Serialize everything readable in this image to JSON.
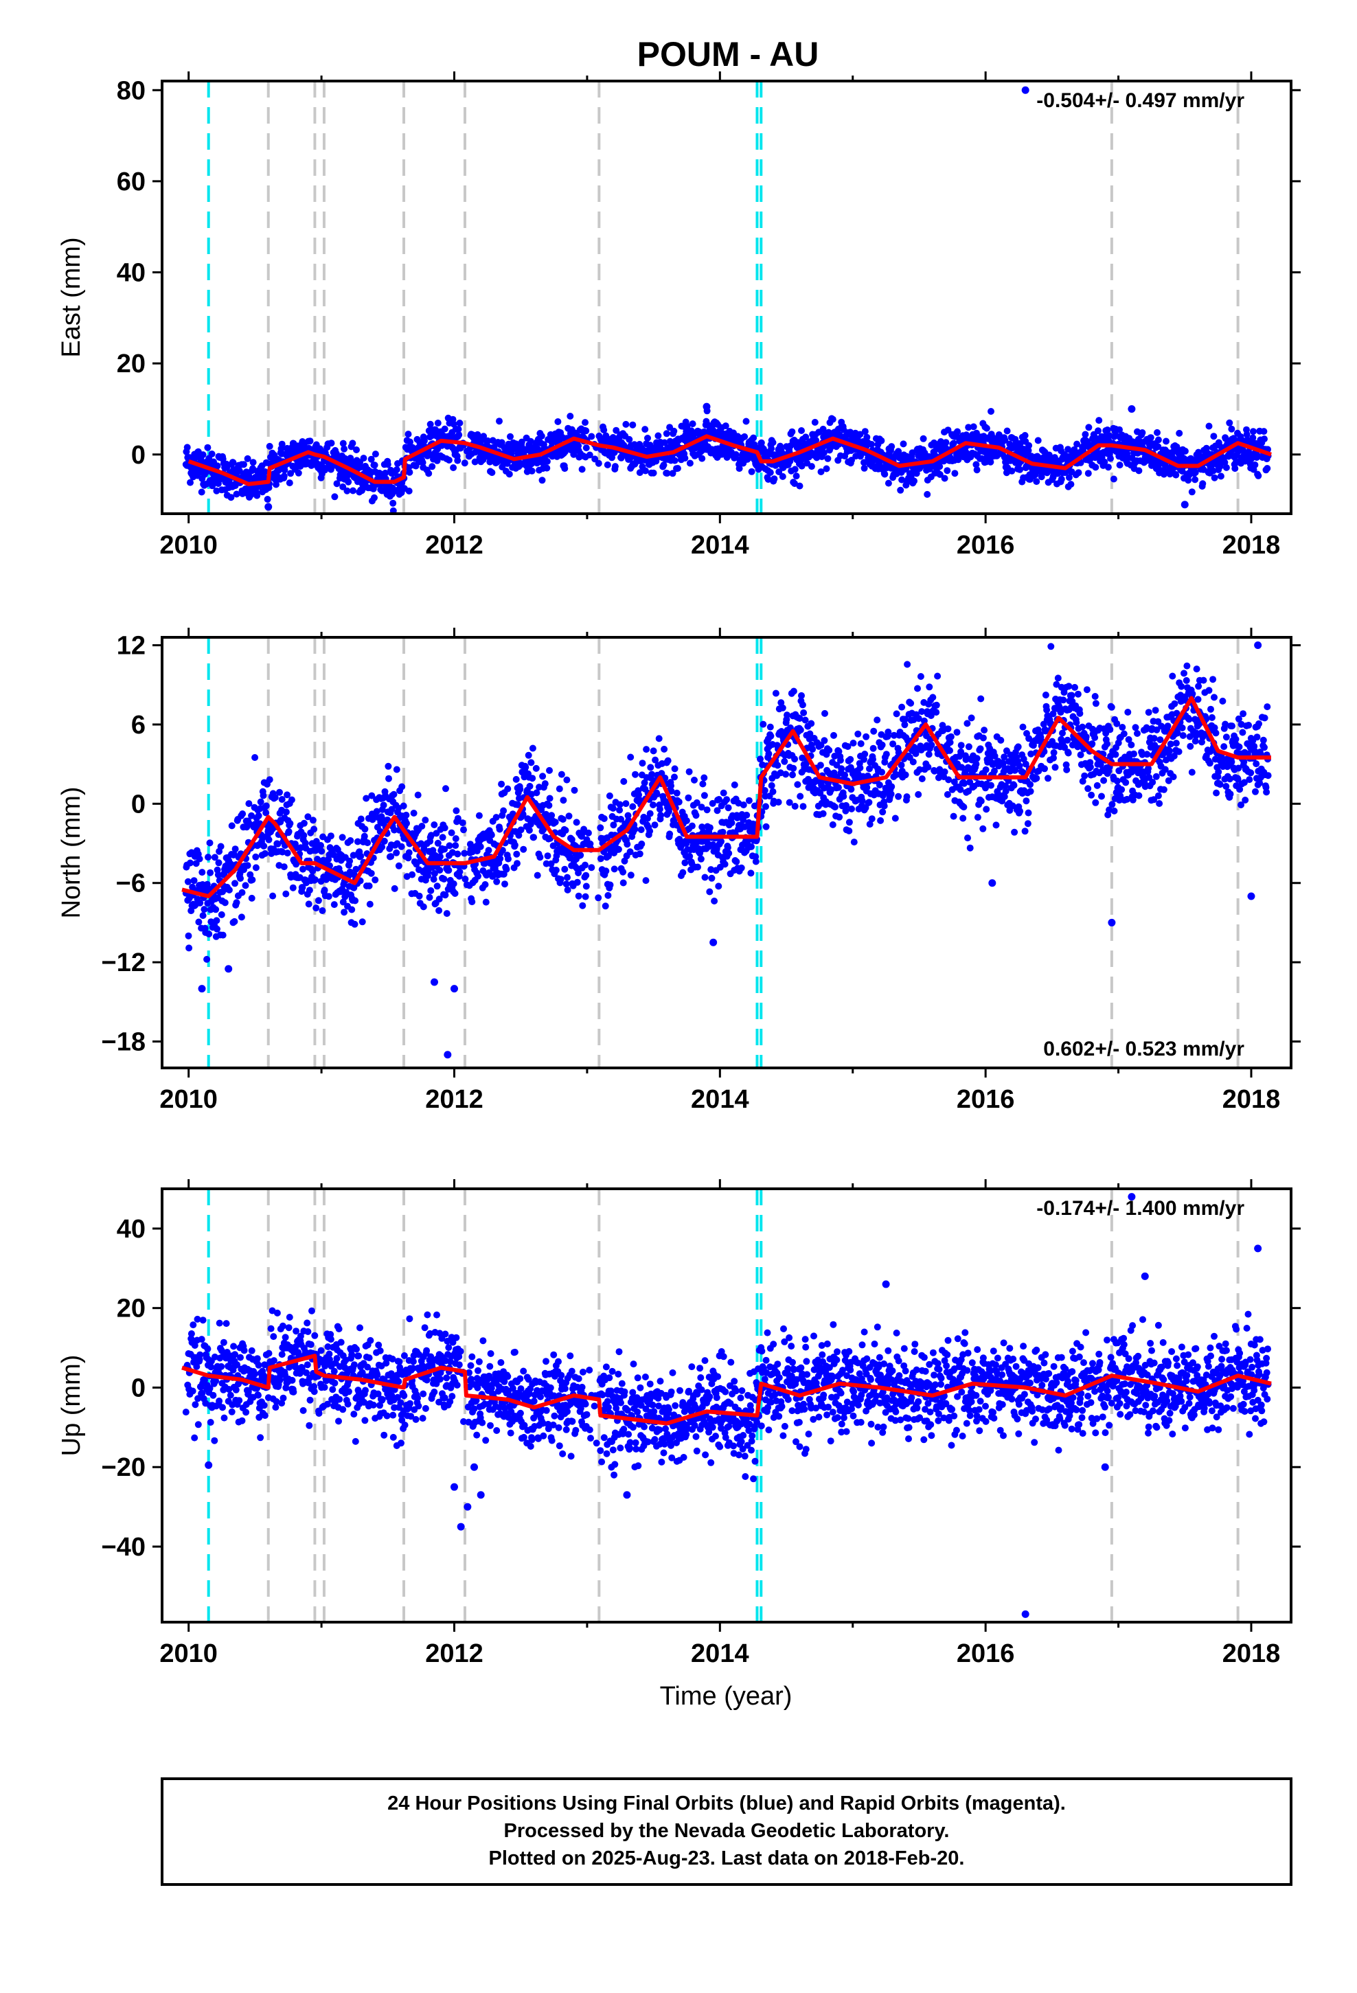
{
  "title": "POUM - AU",
  "xlabel": "Time (year)",
  "footer": {
    "line1": "24 Hour Positions Using Final Orbits (blue) and Rapid Orbits (magenta).",
    "line2": "Processed by the Nevada Geodetic Laboratory.",
    "line3": "Plotted on 2025-Aug-23. Last data on 2018-Feb-20."
  },
  "colors": {
    "points": "#0000ff",
    "model": "#ff0000",
    "equipment_change": "#c8c8c8",
    "earthquake": "#00e5ee"
  },
  "chart_data": [
    {
      "type": "scatter",
      "component": "east",
      "ylabel": "East (mm)",
      "rate": "-0.504+/- 0.497 mm/yr",
      "rate_position": "top-right",
      "xlim": [
        2009.8,
        2018.3
      ],
      "ylim": [
        -13,
        82
      ],
      "x_ticks": [
        2010,
        2012,
        2014,
        2016,
        2018
      ],
      "y_ticks": [
        0,
        20,
        40,
        60,
        80
      ],
      "grid": false,
      "equipment_changes": [
        2010.6,
        2010.95,
        2011.02,
        2011.62,
        2012.08,
        2013.09,
        2016.95,
        2017.9
      ],
      "earthquakes": [
        2010.15,
        2014.28,
        2014.31
      ],
      "model": {
        "x": [
          2010.0,
          2010.25,
          2010.45,
          2010.6,
          2010.61,
          2010.9,
          2010.95,
          2011.02,
          2011.2,
          2011.4,
          2011.55,
          2011.62,
          2011.63,
          2011.9,
          2012.08,
          2012.2,
          2012.45,
          2012.65,
          2012.9,
          2013.09,
          2013.2,
          2013.45,
          2013.65,
          2013.9,
          2014.1,
          2014.28,
          2014.31,
          2014.4,
          2014.6,
          2014.85,
          2015.1,
          2015.35,
          2015.6,
          2015.85,
          2016.1,
          2016.35,
          2016.6,
          2016.85,
          2016.95,
          2017.2,
          2017.45,
          2017.6,
          2017.9,
          2018.15
        ],
        "y": [
          -1.5,
          -4.0,
          -6.5,
          -6.0,
          -3.0,
          0.5,
          0.0,
          -0.5,
          -3.0,
          -6.0,
          -6.0,
          -5.0,
          -1.0,
          3.0,
          2.5,
          1.5,
          -1.0,
          0.0,
          3.5,
          2.0,
          1.5,
          -0.5,
          0.5,
          4.0,
          2.0,
          0.5,
          -1.5,
          -1.5,
          0.5,
          3.5,
          1.0,
          -2.5,
          -1.5,
          2.5,
          1.5,
          -2.0,
          -3.0,
          2.0,
          2.0,
          1.0,
          -2.5,
          -2.5,
          2.5,
          0.0
        ]
      },
      "outliers": [
        {
          "x": 2016.3,
          "y": 80
        },
        {
          "x": 2017.1,
          "y": 10
        },
        {
          "x": 2013.9,
          "y": 10.5
        },
        {
          "x": 2010.6,
          "y": -11.5
        },
        {
          "x": 2017.5,
          "y": -11
        }
      ],
      "scatter_spread": 2.2
    },
    {
      "type": "scatter",
      "component": "north",
      "ylabel": "North (mm)",
      "rate": "0.602+/- 0.523 mm/yr",
      "rate_position": "bottom-right",
      "xlim": [
        2009.8,
        2018.3
      ],
      "ylim": [
        -20,
        12.6
      ],
      "x_ticks": [
        2010,
        2012,
        2014,
        2016,
        2018
      ],
      "y_ticks": [
        -18,
        -12,
        -6,
        0,
        6,
        12
      ],
      "grid": false,
      "equipment_changes": [
        2010.6,
        2010.95,
        2011.02,
        2011.62,
        2012.08,
        2013.09,
        2016.95,
        2017.9
      ],
      "earthquakes": [
        2010.15,
        2014.28,
        2014.31
      ],
      "model": {
        "x": [
          2009.95,
          2010.15,
          2010.35,
          2010.6,
          2010.65,
          2010.85,
          2010.95,
          2011.05,
          2011.25,
          2011.45,
          2011.55,
          2011.62,
          2011.8,
          2012.08,
          2012.3,
          2012.55,
          2012.75,
          2012.9,
          2013.09,
          2013.3,
          2013.55,
          2013.75,
          2014.0,
          2014.28,
          2014.31,
          2014.55,
          2014.75,
          2015.0,
          2015.25,
          2015.55,
          2015.8,
          2016.0,
          2016.3,
          2016.55,
          2016.8,
          2016.95,
          2017.25,
          2017.55,
          2017.75,
          2017.9,
          2018.15
        ],
        "y": [
          -6.5,
          -7.0,
          -5.0,
          -1.0,
          -1.5,
          -4.5,
          -4.5,
          -5.0,
          -6.0,
          -2.5,
          -1.0,
          -2.0,
          -4.5,
          -4.5,
          -4.0,
          0.5,
          -2.5,
          -3.5,
          -3.5,
          -2.0,
          2.0,
          -2.5,
          -2.5,
          -2.5,
          2.0,
          5.5,
          2.0,
          1.5,
          2.0,
          6.0,
          2.0,
          2.0,
          2.0,
          6.5,
          4.0,
          3.0,
          3.0,
          8.0,
          4.0,
          3.5,
          3.5
        ]
      },
      "outliers": [
        {
          "x": 2010.1,
          "y": -14
        },
        {
          "x": 2010.3,
          "y": -12.5
        },
        {
          "x": 2011.85,
          "y": -13.5
        },
        {
          "x": 2012.0,
          "y": -14
        },
        {
          "x": 2011.95,
          "y": -19
        },
        {
          "x": 2013.95,
          "y": -10.5
        },
        {
          "x": 2016.05,
          "y": -6
        },
        {
          "x": 2016.95,
          "y": -9
        },
        {
          "x": 2018.05,
          "y": 12
        },
        {
          "x": 2018.0,
          "y": -7
        }
      ],
      "scatter_spread": 1.8
    },
    {
      "type": "scatter",
      "component": "up",
      "ylabel": "Up (mm)",
      "rate": "-0.174+/- 1.400 mm/yr",
      "rate_position": "top-right",
      "xlim": [
        2009.8,
        2018.3
      ],
      "ylim": [
        -59,
        50
      ],
      "x_ticks": [
        2010,
        2012,
        2014,
        2016,
        2018
      ],
      "y_ticks": [
        -40,
        -20,
        0,
        20,
        40
      ],
      "grid": false,
      "equipment_changes": [
        2010.6,
        2010.95,
        2011.02,
        2011.62,
        2012.08,
        2013.09,
        2016.95,
        2017.9
      ],
      "earthquakes": [
        2010.15,
        2014.28,
        2014.31
      ],
      "model": {
        "x": [
          2009.95,
          2010.15,
          2010.4,
          2010.6,
          2010.61,
          2010.95,
          2010.96,
          2011.02,
          2011.3,
          2011.62,
          2011.63,
          2011.9,
          2012.08,
          2012.09,
          2012.4,
          2012.6,
          2012.9,
          2013.09,
          2013.1,
          2013.6,
          2013.9,
          2014.28,
          2014.31,
          2014.6,
          2014.9,
          2015.2,
          2015.6,
          2015.9,
          2016.3,
          2016.6,
          2016.95,
          2017.3,
          2017.6,
          2017.9,
          2018.15
        ],
        "y": [
          5,
          3,
          2,
          0,
          5,
          8,
          4,
          3,
          2,
          0,
          2,
          5,
          4,
          -2,
          -3,
          -5,
          -2,
          -3,
          -7,
          -9,
          -6,
          -7,
          1,
          -2,
          1,
          0,
          -2,
          1,
          0,
          -2,
          3,
          1,
          -1,
          3,
          1
        ]
      },
      "outliers": [
        {
          "x": 2017.1,
          "y": 48
        },
        {
          "x": 2016.3,
          "y": -57
        },
        {
          "x": 2015.25,
          "y": 26
        },
        {
          "x": 2012.05,
          "y": -35
        },
        {
          "x": 2012.1,
          "y": -30
        },
        {
          "x": 2012.2,
          "y": -27
        },
        {
          "x": 2012.0,
          "y": -25
        },
        {
          "x": 2012.15,
          "y": -20
        },
        {
          "x": 2018.05,
          "y": 35
        },
        {
          "x": 2017.2,
          "y": 28
        },
        {
          "x": 2013.3,
          "y": -27
        },
        {
          "x": 2016.9,
          "y": -20
        },
        {
          "x": 2010.15,
          "y": -19.5
        }
      ],
      "scatter_spread": 5.5
    }
  ]
}
